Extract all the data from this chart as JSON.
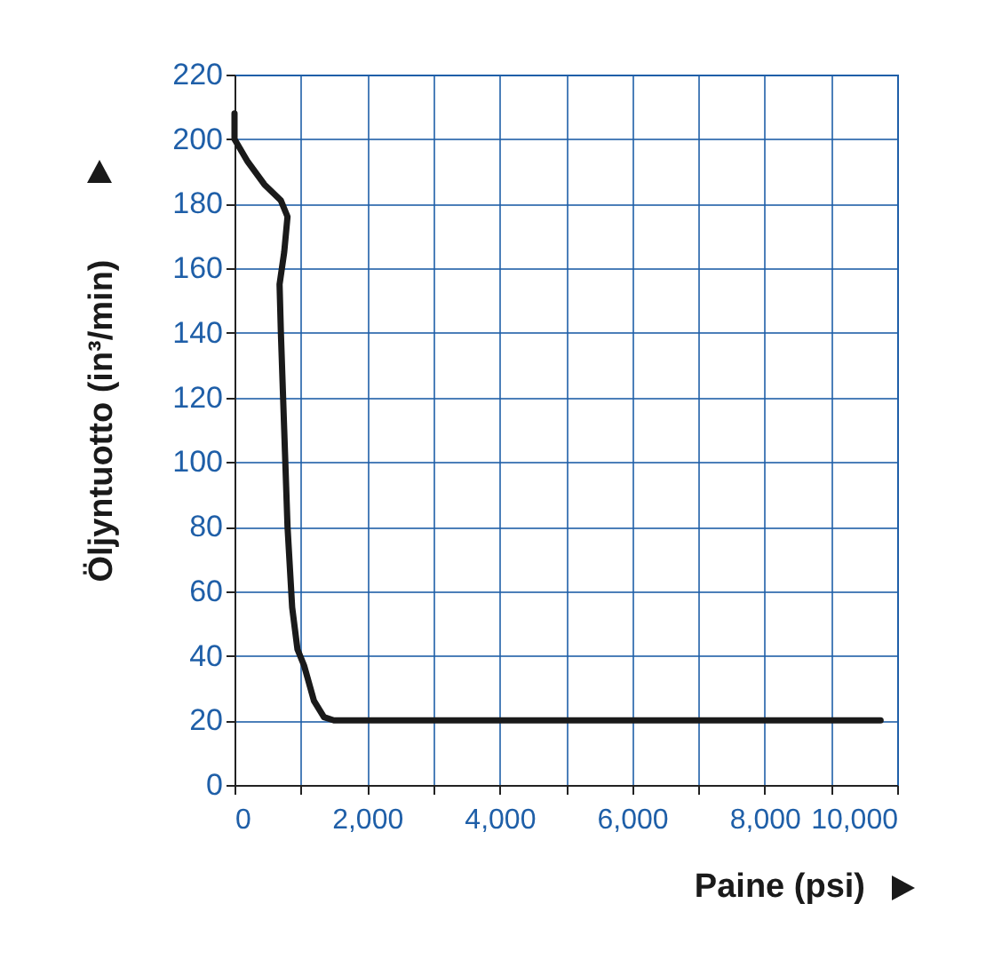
{
  "chart_data": {
    "type": "line",
    "xlabel": "Paine (psi)",
    "ylabel": "Öljyntuotto (in³/min)",
    "x": [
      0,
      0,
      200,
      450,
      700,
      800,
      750,
      680,
      700,
      750,
      800,
      870,
      950,
      1050,
      1200,
      1350,
      1500,
      9750
    ],
    "series": [
      {
        "color": "#1a1a1a",
        "values": [
          208,
          200,
          193,
          186,
          181,
          176,
          165,
          155,
          140,
          110,
          80,
          55,
          42,
          37,
          26,
          21,
          20,
          20
        ]
      }
    ],
    "xlim": [
      0,
      10000
    ],
    "ylim": [
      0,
      220
    ],
    "xticks": [
      0,
      {
        "value": 1000,
        "label": null
      },
      {
        "value": 2000,
        "label": "2,000"
      },
      {
        "value": 3000,
        "label": null
      },
      {
        "value": 4000,
        "label": "4,000"
      },
      {
        "value": 5000,
        "label": null
      },
      {
        "value": 6000,
        "label": "6,000"
      },
      {
        "value": 7000,
        "label": null
      },
      {
        "value": 8000,
        "label": "8,000"
      },
      {
        "value": 9000,
        "label": null
      },
      {
        "value": 10000,
        "label": "10,000"
      }
    ],
    "yticks": [
      0,
      20,
      40,
      60,
      80,
      100,
      120,
      140,
      160,
      180,
      200,
      220
    ],
    "grid": true,
    "marker": "none",
    "line_style": "solid"
  }
}
